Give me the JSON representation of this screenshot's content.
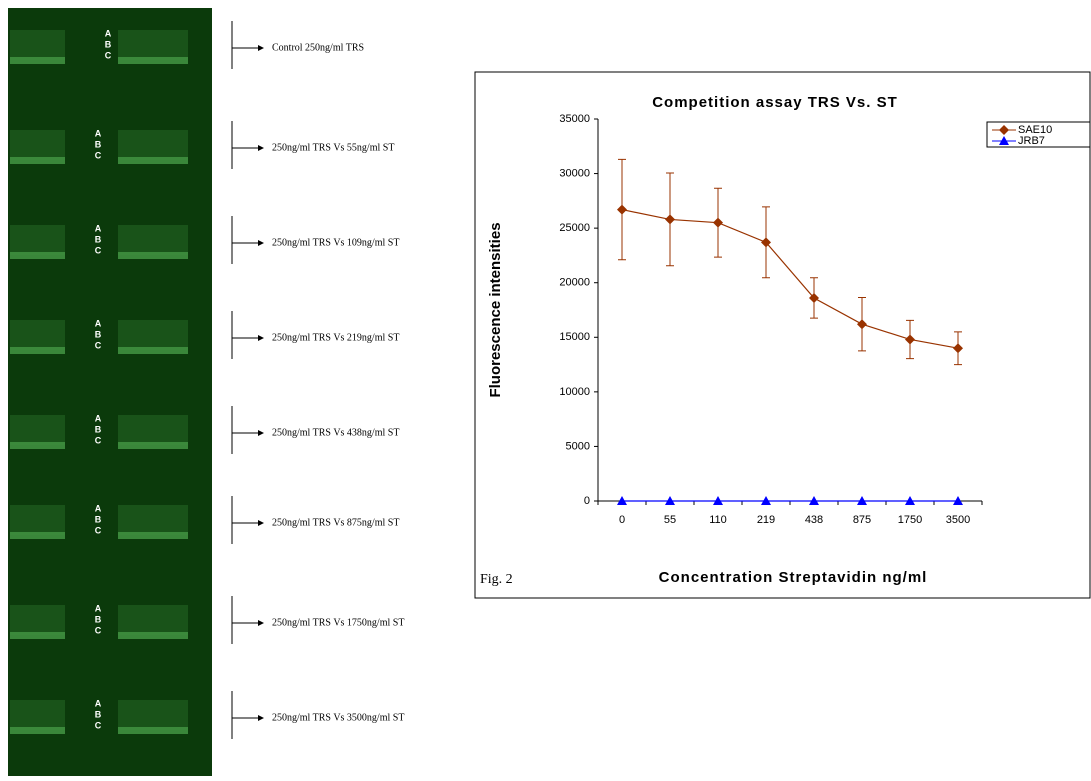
{
  "array_image": {
    "rows": [
      {
        "letters": [
          "A",
          "B",
          "C"
        ],
        "label": "Control 250ng/ml TRS"
      },
      {
        "letters": [
          "A",
          "B",
          "C"
        ],
        "label": "250ng/ml TRS Vs 55ng/ml ST"
      },
      {
        "letters": [
          "A",
          "B",
          "C"
        ],
        "label": "250ng/ml TRS Vs 109ng/ml ST"
      },
      {
        "letters": [
          "A",
          "B",
          "C"
        ],
        "label": "250ng/ml TRS Vs 219ng/ml ST"
      },
      {
        "letters": [
          "A",
          "B",
          "C"
        ],
        "label": "250ng/ml TRS Vs 438ng/ml ST"
      },
      {
        "letters": [
          "A",
          "B",
          "C"
        ],
        "label": "250ng/ml TRS Vs 875ng/ml ST"
      },
      {
        "letters": [
          "A",
          "B",
          "C"
        ],
        "label": "250ng/ml TRS Vs 1750ng/ml ST"
      },
      {
        "letters": [
          "A",
          "B",
          "C"
        ],
        "label": "250ng/ml TRS Vs 3500ng/ml ST"
      }
    ]
  },
  "chart_data": {
    "type": "line",
    "title": "Competition assay TRS Vs. ST",
    "x_label": "Concentration Streptavidin ng/ml",
    "y_label": "Fluorescence intensities",
    "annotation": "Fig. 2",
    "categories": [
      "0",
      "55",
      "110",
      "219",
      "438",
      "875",
      "1750",
      "3500"
    ],
    "series": [
      {
        "name": "SAE10",
        "color": "#993300",
        "marker": "diamond",
        "values": [
          26700,
          25800,
          25500,
          23700,
          18600,
          16200,
          14800,
          14000
        ],
        "errors": [
          4600,
          4250,
          3150,
          3250,
          1850,
          2450,
          1750,
          1500
        ]
      },
      {
        "name": "JRB7",
        "color": "#0000ff",
        "marker": "triangle",
        "values": [
          0,
          0,
          0,
          0,
          0,
          0,
          0,
          0
        ]
      }
    ],
    "ylim": [
      0,
      35000
    ],
    "yticks": [
      0,
      5000,
      10000,
      15000,
      20000,
      25000,
      30000,
      35000
    ],
    "grid": false,
    "legend": "right"
  }
}
